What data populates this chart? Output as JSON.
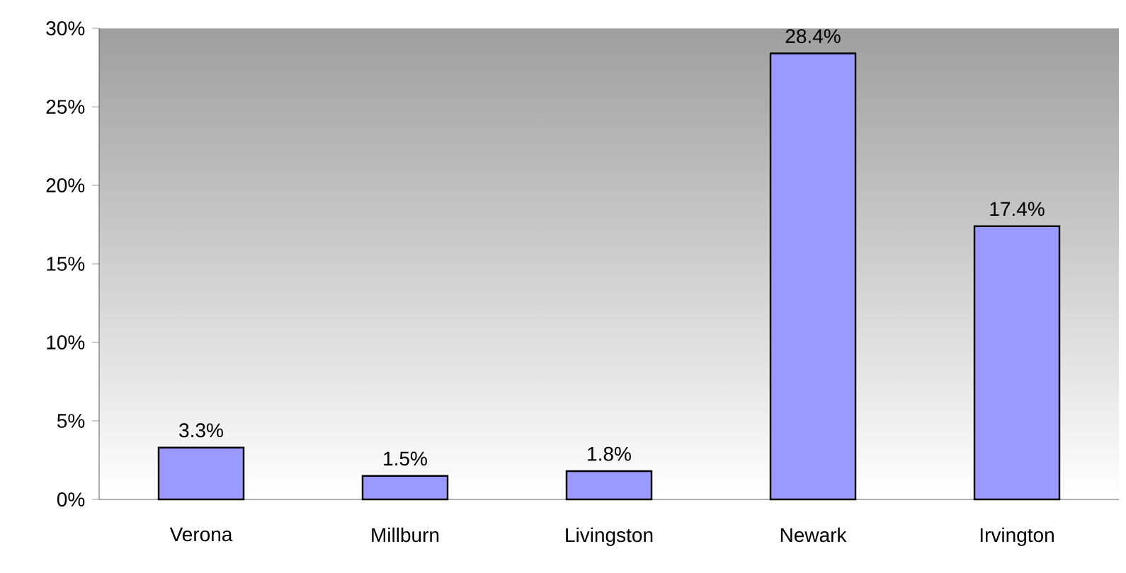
{
  "chart_data": {
    "type": "bar",
    "categories": [
      "Verona",
      "Millburn",
      "Livingston",
      "Newark",
      "Irvington"
    ],
    "values": [
      3.3,
      1.5,
      1.8,
      28.4,
      17.4
    ],
    "value_labels": [
      "3.3%",
      "1.5%",
      "1.8%",
      "28.4%",
      "17.4%"
    ],
    "color": "#9999ff",
    "ylim": [
      0,
      30
    ],
    "yticks": [
      {
        "value": 0,
        "label": "0%"
      },
      {
        "value": 5,
        "label": "5%"
      },
      {
        "value": 10,
        "label": "10%"
      },
      {
        "value": 15,
        "label": "15%"
      },
      {
        "value": 20,
        "label": "20%"
      },
      {
        "value": 25,
        "label": "25%"
      },
      {
        "value": 30,
        "label": "30%"
      }
    ],
    "grid": false
  }
}
